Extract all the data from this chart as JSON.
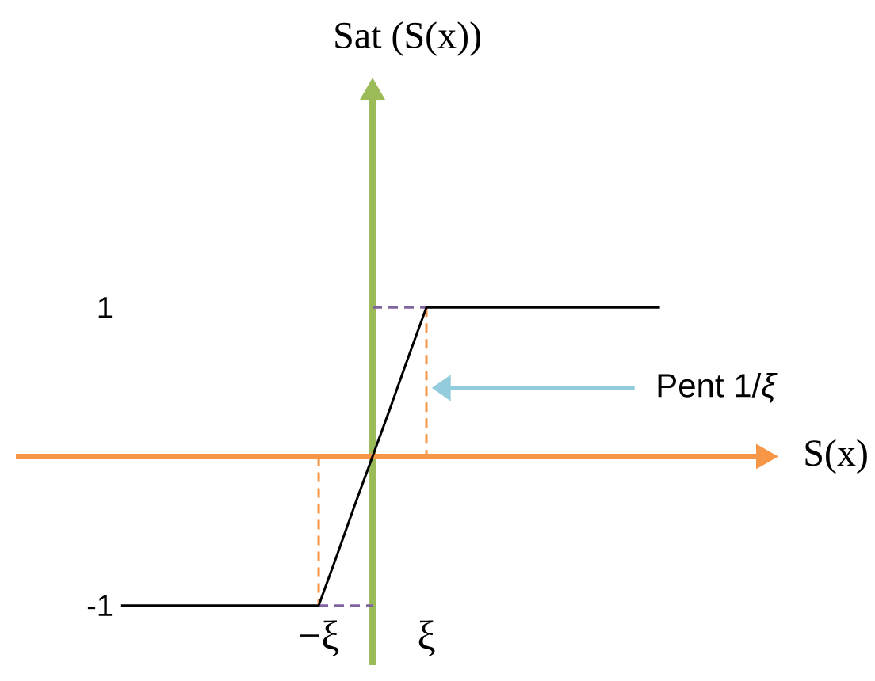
{
  "chart_data": {
    "type": "line",
    "xlabel": "S(x)",
    "ylabel": "Sat (S(x))",
    "categories": [
      null,
      null,
      null,
      null,
      null,
      null,
      null,
      null,
      null,
      null,
      null,
      null,
      null,
      "−ξ",
      null,
      null,
      null,
      null,
      null,
      "ξ",
      null,
      null,
      null,
      null,
      null,
      null,
      null,
      null,
      null,
      null,
      null,
      null,
      null
    ],
    "ylim": [
      -1.4,
      2.5
    ],
    "yticks": [
      -1,
      1
    ],
    "marker": "none",
    "line_style": "solid",
    "ref_lines": [
      {
        "axis": "y",
        "value": 0,
        "color": "#f79646"
      }
    ],
    "annotations": [
      "Pent 1/*ξ*"
    ],
    "series": [
      {
        "color": "#8064a2",
        "line_style": "dashed",
        "values": [
          null,
          null,
          null,
          null,
          null,
          null,
          null,
          null,
          null,
          null,
          null,
          null,
          null,
          null,
          null,
          null,
          1,
          1,
          1,
          1,
          null,
          null,
          null,
          null,
          null,
          null,
          null,
          null,
          null,
          null,
          null,
          null,
          null
        ]
      },
      {
        "color": "#8064a2",
        "line_style": "dashed",
        "values": [
          null,
          null,
          null,
          null,
          null,
          null,
          null,
          null,
          null,
          null,
          null,
          null,
          null,
          -1,
          -1,
          -1,
          -1,
          null,
          null,
          null,
          null,
          null,
          null,
          null,
          null,
          null,
          null,
          null,
          null,
          null,
          null,
          null,
          null
        ]
      },
      {
        "color": "#f79646",
        "line_style": "dashed",
        "x": [
          "ξ",
          "ξ"
        ],
        "values": [
          1,
          0
        ]
      },
      {
        "color": "#f79646",
        "line_style": "dashed",
        "x": [
          "−ξ",
          "−ξ"
        ],
        "values": [
          0,
          -1
        ]
      },
      {
        "color": "#000000",
        "values": [
          null,
          null,
          -1,
          -1,
          -1,
          -1,
          -1,
          -1,
          -1,
          -1,
          -1,
          -1,
          -1,
          -1,
          -0.67,
          -0.33,
          0,
          0.33,
          0.67,
          1,
          1,
          1,
          1,
          1,
          1,
          1,
          1,
          1,
          1,
          1,
          1,
          1,
          1
        ]
      }
    ]
  }
}
